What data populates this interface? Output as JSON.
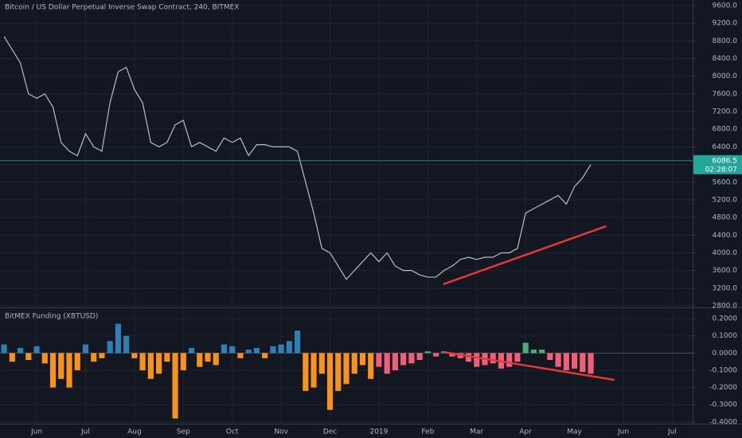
{
  "chart_data": [
    {
      "type": "line",
      "title": "Bitcoin / US Dollar Perpetual Inverse Swap Contract, 240, BITMEX",
      "categories": [
        null,
        null,
        null,
        null,
        "Jun",
        null,
        null,
        null,
        null,
        null,
        "Jul",
        null,
        null,
        null,
        null,
        null,
        "Aug",
        null,
        null,
        null,
        null,
        null,
        "Sep",
        null,
        null,
        null,
        null,
        null,
        "Oct",
        null,
        null,
        null,
        null,
        null,
        "Nov",
        null,
        null,
        null,
        null,
        null,
        "Dec",
        null,
        null,
        null,
        null,
        null,
        "2019",
        null,
        null,
        null,
        null,
        null,
        "Feb",
        null,
        null,
        null,
        null,
        null,
        "Mar",
        null,
        null,
        null,
        null,
        null,
        "Apr",
        null,
        null,
        null,
        null,
        null,
        "May",
        null,
        null,
        null,
        null,
        null,
        "Jun",
        null,
        null,
        null,
        null,
        null,
        "Jul",
        null,
        null
      ],
      "color": "#b8bcc4",
      "values": [
        8900,
        8600,
        8300,
        7600,
        7500,
        7600,
        7300,
        6500,
        6300,
        6200,
        6700,
        6400,
        6300,
        7400,
        8100,
        8200,
        7700,
        7400,
        6500,
        6400,
        6500,
        6900,
        7000,
        6400,
        6500,
        6400,
        6300,
        6600,
        6500,
        6600,
        6200,
        6450,
        6450,
        6400,
        6400,
        6400,
        6300,
        5600,
        4900,
        4100,
        4000,
        3700,
        3400,
        3600,
        3800,
        4000,
        3800,
        4000,
        3700,
        3600,
        3600,
        3500,
        3450,
        3450,
        3600,
        3700,
        3850,
        3900,
        3850,
        3900,
        3900,
        4000,
        4000,
        4100,
        4900,
        5000,
        5100,
        5200,
        5300,
        5100,
        5500,
        5700,
        6000,
        null,
        null,
        null,
        null,
        null,
        null,
        null,
        null,
        null,
        null,
        null,
        null
      ],
      "ylim": [
        2782,
        9726
      ],
      "yticks": [
        {
          "value": 2800,
          "label": "2800.0"
        },
        {
          "value": 3200,
          "label": "3200.0"
        },
        {
          "value": 3600,
          "label": "3600.0"
        },
        {
          "value": 4000,
          "label": "4000.0"
        },
        {
          "value": 4400,
          "label": "4400.0"
        },
        {
          "value": 4800,
          "label": "4800.0"
        },
        {
          "value": 5200,
          "label": "5200.0"
        },
        {
          "value": 5600,
          "label": "5600.0"
        },
        {
          "value": 6000,
          "label": "6000.0"
        },
        {
          "value": 6400,
          "label": "6400.0"
        },
        {
          "value": 6800,
          "label": "6800.0"
        },
        {
          "value": 7200,
          "label": "7200.0"
        },
        {
          "value": 7600,
          "label": "7600.0"
        },
        {
          "value": 8000,
          "label": "8000.0"
        },
        {
          "value": 8400,
          "label": "8400.0"
        },
        {
          "value": 8800,
          "label": "8800.0"
        },
        {
          "value": 9200,
          "label": "9200.0"
        },
        {
          "value": 9600,
          "label": "9600.0"
        }
      ],
      "grid": true,
      "last_price": 6086.5,
      "last_price_color": "#26a69a",
      "countdown": "02:28:07",
      "trend_lines": [
        {
          "color": "#e53935",
          "x": [
            53.9,
            73.9
          ],
          "values": [
            3289,
            4605
          ]
        }
      ]
    },
    {
      "type": "bar",
      "title": "BitMEX Funding (XBTUSD)",
      "series": [
        {
          "positive_color": "#2f7fb4",
          "negative_color": "#f7931a",
          "values": [
            0.05,
            -0.05,
            0.03,
            -0.04,
            0.04,
            -0.06,
            -0.2,
            -0.15,
            -0.2,
            -0.1,
            0.05,
            -0.05,
            -0.03,
            0.07,
            0.17,
            0.1,
            -0.03,
            -0.1,
            -0.15,
            -0.12,
            -0.05,
            -0.38,
            -0.1,
            0.03,
            -0.08,
            -0.05,
            -0.07,
            0.05,
            0.04,
            -0.03,
            0.02,
            0.03,
            -0.03,
            0.04,
            0.05,
            0.07,
            0.13,
            -0.22,
            -0.2,
            -0.12,
            -0.33,
            -0.22,
            -0.18,
            -0.12,
            -0.07,
            -0.15,
            null,
            null,
            null,
            null,
            null,
            null,
            null,
            null,
            null,
            null,
            null,
            null,
            null,
            null,
            null,
            null,
            null,
            null,
            null,
            null,
            null,
            null,
            null,
            null,
            null,
            null,
            null,
            null,
            null,
            null,
            null,
            null,
            null,
            null,
            null,
            null,
            null,
            null,
            null
          ]
        },
        {
          "positive_color": "#53a87a",
          "negative_color": "#ef5f7a",
          "values": [
            null,
            null,
            null,
            null,
            null,
            null,
            null,
            null,
            null,
            null,
            null,
            null,
            null,
            null,
            null,
            null,
            null,
            null,
            null,
            null,
            null,
            null,
            null,
            null,
            null,
            null,
            null,
            null,
            null,
            null,
            null,
            null,
            null,
            null,
            null,
            null,
            null,
            null,
            null,
            null,
            null,
            null,
            null,
            null,
            null,
            null,
            -0.08,
            -0.12,
            -0.1,
            -0.07,
            -0.06,
            -0.04,
            0.01,
            -0.02,
            0.01,
            -0.02,
            -0.03,
            -0.05,
            -0.08,
            -0.07,
            -0.06,
            -0.09,
            -0.08,
            -0.05,
            0.06,
            0.02,
            0.02,
            -0.04,
            -0.08,
            -0.1,
            -0.09,
            -0.11,
            -0.12,
            null,
            null,
            null,
            null,
            null,
            null,
            null,
            null,
            null,
            null,
            null,
            null
          ]
        }
      ],
      "ylim": [
        -0.41,
        0.256
      ],
      "yticks": [
        {
          "value": 0.2,
          "label": "0.2000"
        },
        {
          "value": 0.1,
          "label": "0.1000"
        },
        {
          "value": 0,
          "label": "0.0000"
        },
        {
          "value": -0.1,
          "label": "-0.1000"
        },
        {
          "value": -0.2,
          "label": "-0.2000"
        },
        {
          "value": -0.3,
          "label": "-0.3000"
        },
        {
          "value": -0.4,
          "label": "-0.4000"
        }
      ],
      "grid": true,
      "trend_lines": [
        {
          "color": "#e53935",
          "x": [
            53.9,
            74.9
          ],
          "values": [
            0.006,
            -0.156
          ]
        }
      ]
    }
  ]
}
